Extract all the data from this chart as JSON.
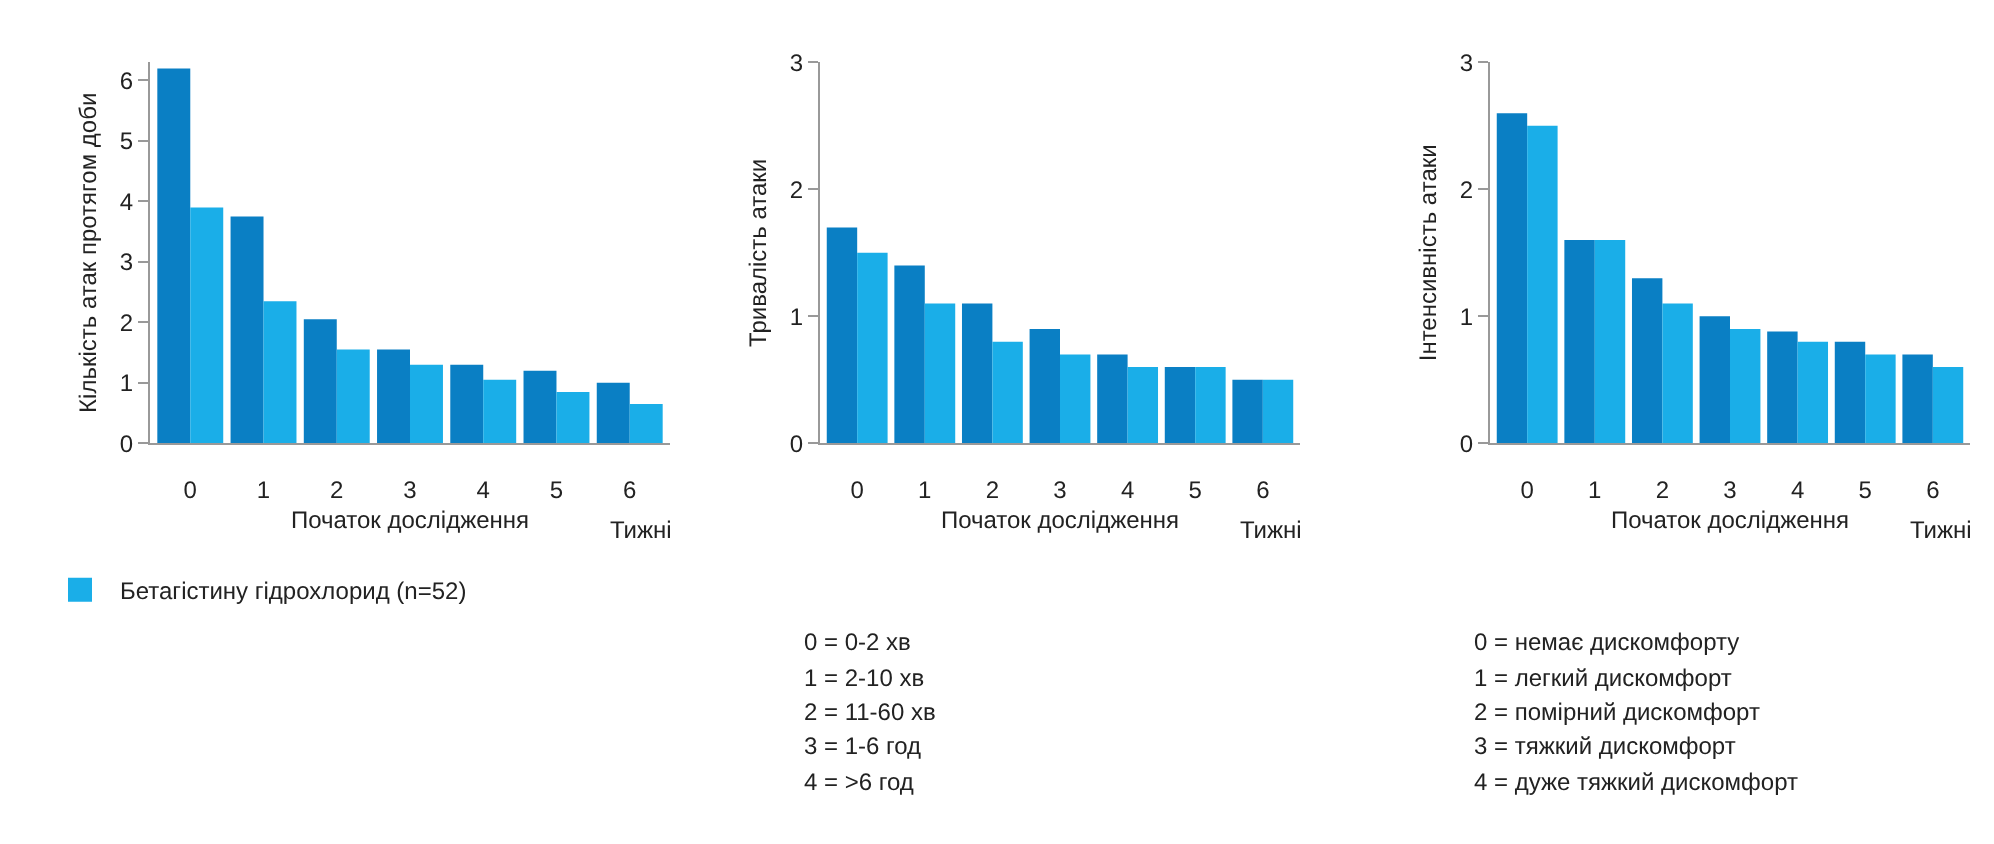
{
  "chart_data": [
    {
      "type": "bar",
      "ylabel": "Кількість атак протягом доби",
      "xlabel": "Початок дослідження",
      "categories": [
        "0",
        "1",
        "2",
        "3",
        "4",
        "5",
        "6"
      ],
      "series": [
        {
          "color": "#0a7fc4",
          "values": [
            6.2,
            3.75,
            2.05,
            1.55,
            1.3,
            1.2,
            1.0
          ]
        },
        {
          "name": "Бетагістину гідрохлорид (n=52)",
          "color": "#1aaee8",
          "values": [
            3.9,
            2.35,
            1.55,
            1.3,
            1.05,
            0.85,
            0.65
          ]
        }
      ],
      "ylim": [
        0,
        6.3
      ],
      "yticks": [
        0,
        1,
        2,
        3,
        4,
        5,
        6
      ],
      "legend": "bottom left",
      "annotations": [
        "Тижні"
      ]
    },
    {
      "type": "bar",
      "ylabel": "Тривалість атаки",
      "xlabel": "Початок дослідження",
      "categories": [
        "0",
        "1",
        "2",
        "3",
        "4",
        "5",
        "6"
      ],
      "series": [
        {
          "color": "#0a7fc4",
          "values": [
            1.7,
            1.4,
            1.1,
            0.9,
            0.7,
            0.6,
            0.5
          ]
        },
        {
          "color": "#1aaee8",
          "values": [
            1.5,
            1.1,
            0.8,
            0.7,
            0.6,
            0.6,
            0.5
          ]
        }
      ],
      "ylim": [
        0,
        3
      ],
      "yticks": [
        0,
        1,
        2,
        3
      ],
      "annotations": [
        "Тижні",
        "0 = 0-2 хв",
        "1 = 2-10 хв",
        "2 = 11-60 хв",
        "3 = 1-6 год",
        "4 = >6 год"
      ]
    },
    {
      "type": "bar",
      "ylabel": "Інтенсивність атаки",
      "xlabel": "Початок дослідження",
      "categories": [
        "0",
        "1",
        "2",
        "3",
        "4",
        "5",
        "6"
      ],
      "series": [
        {
          "color": "#0a7fc4",
          "values": [
            2.6,
            1.6,
            1.3,
            1.0,
            0.88,
            0.8,
            0.7
          ]
        },
        {
          "color": "#1aaee8",
          "values": [
            2.5,
            1.6,
            1.1,
            0.9,
            0.8,
            0.7,
            0.6
          ]
        }
      ],
      "ylim": [
        0,
        3
      ],
      "yticks": [
        0,
        1,
        2,
        3
      ],
      "annotations": [
        "Тижні",
        "0 = немає дискомфорту",
        "1 = легкий дискомфорт",
        "2 = помірний дискомфорт",
        "3 = тяжкий дискомфорт",
        "4 = дуже тяжкий дискомфорт"
      ]
    }
  ]
}
